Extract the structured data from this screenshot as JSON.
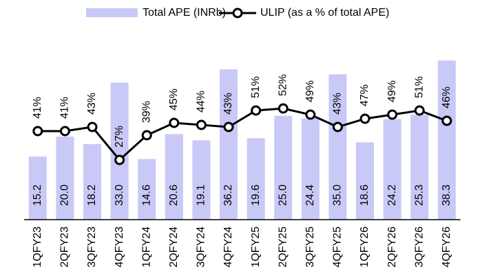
{
  "chart_data": {
    "type": "bar",
    "categories": [
      "1QFY23",
      "2QFY23",
      "3QFY23",
      "4QFY23",
      "1QFY24",
      "2QFY24",
      "3QFY24",
      "4QFY24",
      "1QFY25",
      "2QFY25",
      "3QFY25",
      "4QFY25",
      "1QFY26",
      "2QFY26",
      "3QFY26",
      "4QFY26"
    ],
    "series": [
      {
        "name": "Total APE (INRb)",
        "type": "bar",
        "color": "#c9c9f7",
        "values": [
          15.2,
          20.0,
          18.2,
          33.0,
          14.6,
          20.6,
          19.1,
          36.2,
          19.6,
          25.0,
          24.4,
          35.0,
          18.6,
          24.2,
          25.3,
          38.3
        ],
        "value_labels": [
          "15.2",
          "20.0",
          "18.2",
          "33.0",
          "14.6",
          "20.6",
          "19.1",
          "36.2",
          "19.6",
          "25.0",
          "24.4",
          "35.0",
          "18.6",
          "24.2",
          "25.3",
          "38.3"
        ]
      },
      {
        "name": "ULIP (as a % of total APE)",
        "type": "line",
        "axis": "y2",
        "color": "#000000",
        "values": [
          41,
          41,
          43,
          27,
          39,
          45,
          44,
          43,
          51,
          52,
          49,
          43,
          47,
          49,
          51,
          46
        ],
        "value_labels": [
          "41%",
          "41%",
          "43%",
          "27%",
          "39%",
          "45%",
          "44%",
          "43%",
          "51%",
          "52%",
          "49%",
          "43%",
          "47%",
          "49%",
          "51%",
          "46%"
        ]
      }
    ],
    "ylim": [
      0,
      40
    ],
    "y2lim": [
      0,
      80
    ],
    "grid": false
  }
}
